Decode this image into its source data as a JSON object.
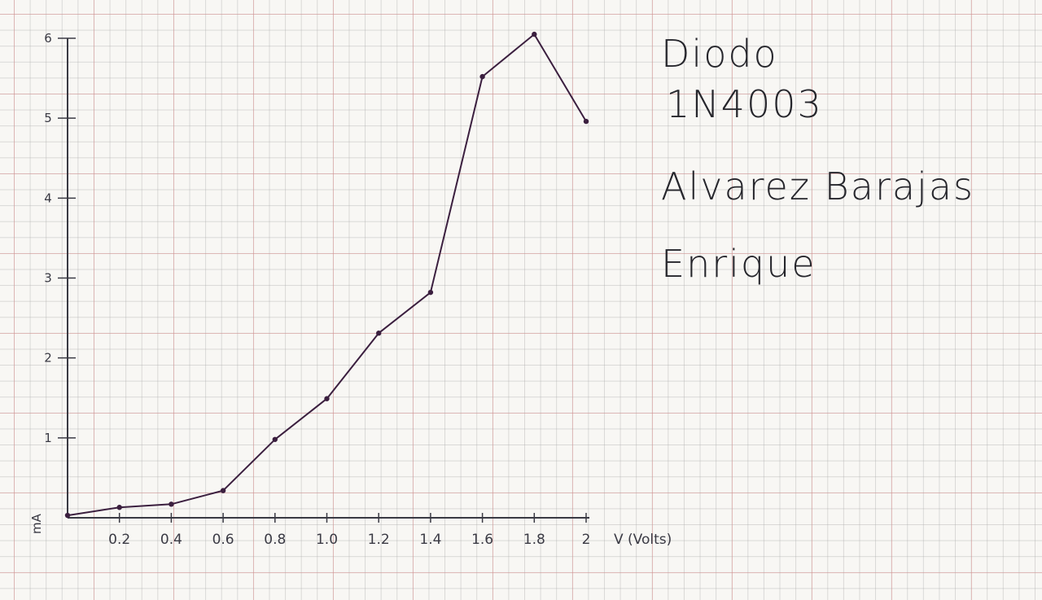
{
  "chart_data": {
    "type": "line",
    "title": "",
    "xlabel": "V (Volts)",
    "ylabel": "mA",
    "x": [
      0,
      0.2,
      0.4,
      0.6,
      0.8,
      1.0,
      1.2,
      1.4,
      1.6,
      1.8,
      2.0
    ],
    "y": [
      0.03,
      0.13,
      0.17,
      0.34,
      0.98,
      1.49,
      2.31,
      2.82,
      5.52,
      6.05,
      4.96
    ],
    "xticks": [
      "0.2",
      "0.4",
      "0.6",
      "0.8",
      "1.0",
      "1.2",
      "1.4",
      "1.6",
      "1.8",
      "2"
    ],
    "yticks": [
      "1",
      "2",
      "3",
      "4",
      "5",
      "6"
    ],
    "xlim": [
      0,
      2
    ],
    "ylim": [
      0,
      6
    ],
    "grid": true,
    "line_color": "#3b1f3f"
  },
  "notes": {
    "line1": "Diodo",
    "line2": "1N4003",
    "line3": "Alvarez Barajas",
    "line4": "Enrique"
  }
}
